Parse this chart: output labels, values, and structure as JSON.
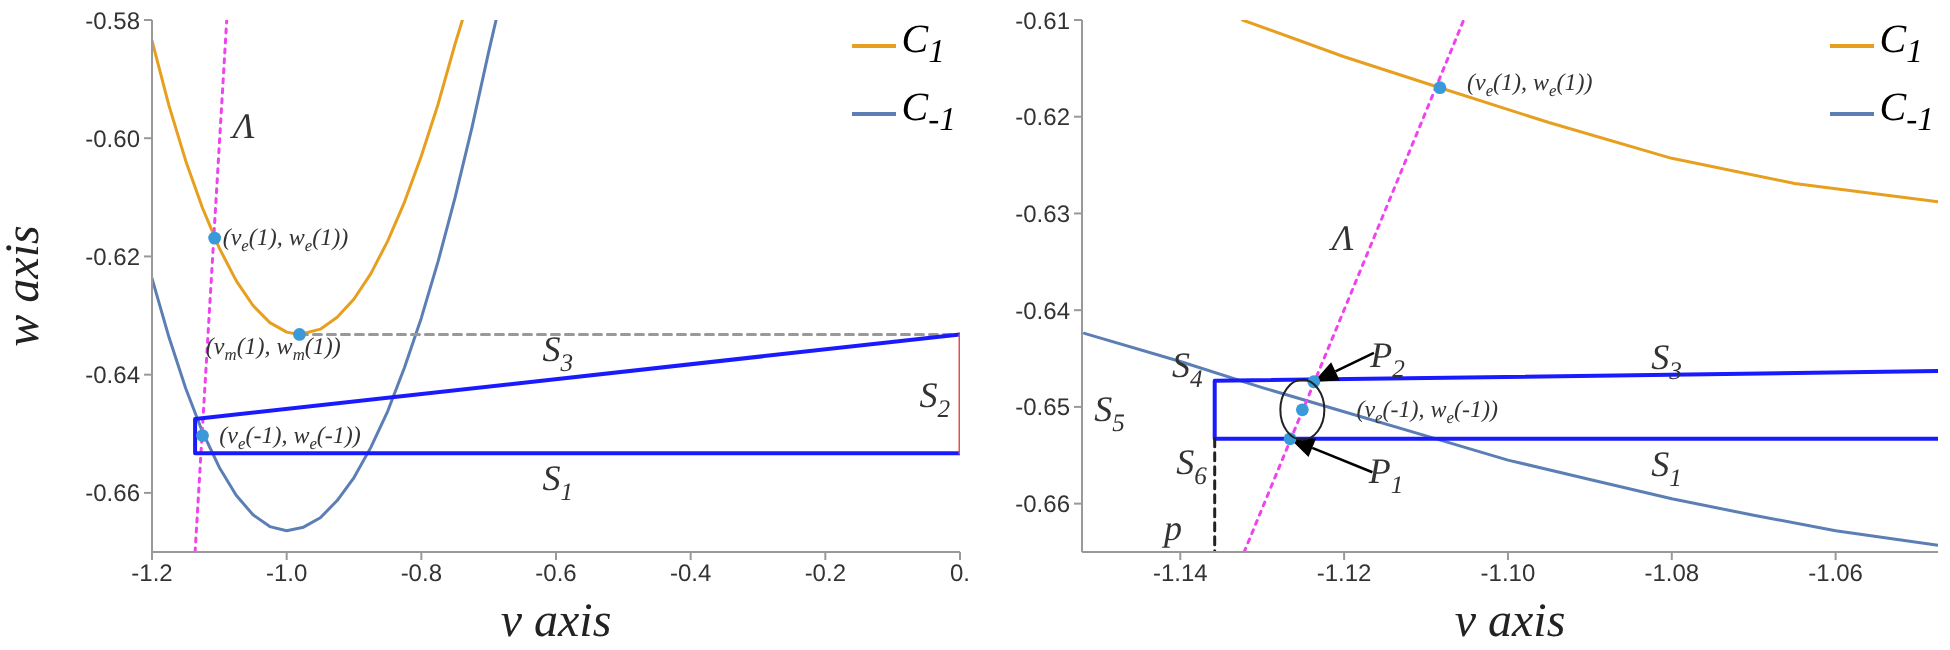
{
  "chart_data": [
    {
      "type": "line",
      "xlabel": "v axis",
      "ylabel": "w axis",
      "xlim": [
        -1.2,
        0
      ],
      "ylim": [
        -0.67,
        -0.58
      ],
      "xticks": [
        -1.2,
        {
          "value": -1,
          "label": "-1.0"
        },
        -0.8,
        -0.6,
        -0.4,
        -0.2,
        {
          "value": 0,
          "label": "0."
        }
      ],
      "yticks": [
        -0.58,
        {
          "value": -0.6,
          "label": "-0.60"
        },
        -0.62,
        -0.64,
        -0.66
      ],
      "grid": false,
      "legend": "top right",
      "marker": "none",
      "series": [
        {
          "name": "C$_{1}$",
          "color": "#e69f1e",
          "x": [
            -1.2,
            -1.175,
            -1.15,
            -1.125,
            -1.1,
            -1.075,
            -1.05,
            -1.025,
            -1.0,
            -0.981,
            -0.95,
            -0.925,
            -0.9,
            -0.875,
            -0.85,
            -0.825,
            -0.8,
            -0.775,
            -0.75,
            -0.739
          ],
          "values": [
            -0.5835,
            -0.5944,
            -0.6038,
            -0.6118,
            -0.6186,
            -0.6241,
            -0.6283,
            -0.6312,
            -0.6328,
            -0.6332,
            -0.6323,
            -0.6303,
            -0.6272,
            -0.6229,
            -0.6174,
            -0.6108,
            -0.603,
            -0.5942,
            -0.5841,
            -0.58
          ]
        },
        {
          "name": "C$_{-1}$",
          "color": "#5b7fb5",
          "x": [
            -1.2,
            -1.175,
            -1.15,
            -1.125,
            -1.1,
            -1.075,
            -1.05,
            -1.025,
            -1.0,
            -0.975,
            -0.95,
            -0.925,
            -0.9,
            -0.875,
            -0.85,
            -0.825,
            -0.8,
            -0.775,
            -0.75,
            -0.725,
            -0.7,
            -0.689
          ],
          "values": [
            -0.6237,
            -0.6336,
            -0.6423,
            -0.6497,
            -0.6557,
            -0.6604,
            -0.6637,
            -0.6657,
            -0.6664,
            -0.6658,
            -0.6642,
            -0.6613,
            -0.6574,
            -0.6523,
            -0.6462,
            -0.6388,
            -0.6304,
            -0.6208,
            -0.6101,
            -0.5983,
            -0.5854,
            -0.58
          ]
        },
        {
          "color": "#ee44ee",
          "line_style": "dotted",
          "x": [
            -1.136,
            -1.089
          ],
          "values": [
            -0.67,
            -0.58
          ]
        },
        {
          "color": "#999999",
          "line_style": "dashed",
          "x": [
            -0.981,
            0
          ],
          "values": [
            -0.6332,
            -0.6332
          ]
        },
        {
          "color": "#1a1aff",
          "x": [
            0,
            -1.136,
            -1.136,
            0
          ],
          "values": [
            -0.6533,
            -0.6533,
            -0.6475,
            -0.6332
          ]
        },
        {
          "color": "#e05050",
          "x": [
            0,
            0
          ],
          "values": [
            -0.6332,
            -0.6533
          ]
        },
        {
          "type": "scatter",
          "marker": "circle",
          "color": "#3a9ad9",
          "x": [
            -1.107,
            -0.981,
            -1.125
          ],
          "values": [
            -0.6169,
            -0.6332,
            -0.6503
          ]
        }
      ],
      "annotations": [
        "Λ",
        "(v$_{e}$(1), w$_{e}$(1))",
        "(v$_{m}$(1), w$_{m}$(1))",
        "(v$_{e}$(-1), w$_{e}$(-1))",
        "S$_{3}$",
        "S$_{2}$",
        "S$_{1}$"
      ]
    },
    {
      "type": "line",
      "xlabel": "v axis",
      "xlim": [
        -1.152,
        -1.0475
      ],
      "ylim": [
        -0.665,
        -0.61
      ],
      "xticks": [
        -1.14,
        -1.12,
        {
          "value": -1.1,
          "label": "-1.10"
        },
        -1.08,
        -1.06
      ],
      "yticks": [
        -0.61,
        -0.62,
        -0.63,
        -0.64,
        -0.65,
        -0.66
      ],
      "grid": false,
      "legend": "top right",
      "marker": "none",
      "series": [
        {
          "name": "C$_{1}$",
          "color": "#e69f1e",
          "x": [
            -1.1324,
            -1.12,
            -1.1083,
            -1.095,
            -1.08,
            -1.065,
            -1.0475
          ],
          "values": [
            -0.61,
            -0.6138,
            -0.617,
            -0.6206,
            -0.6243,
            -0.6269,
            -0.6288
          ]
        },
        {
          "name": "C$_{-1}$",
          "color": "#5b7fb5",
          "x": [
            -1.1517,
            -1.14,
            -1.13,
            -1.12,
            -1.11,
            -1.1,
            -1.09,
            -1.08,
            -1.07,
            -1.06,
            -1.0475
          ],
          "values": [
            -0.6424,
            -0.6453,
            -0.648,
            -0.6505,
            -0.653,
            -0.6555,
            -0.6575,
            -0.6595,
            -0.6612,
            -0.6628,
            -0.6643
          ]
        },
        {
          "color": "#ee44ee",
          "line_style": "dotted",
          "x": [
            -1.1322,
            -1.1054
          ],
          "values": [
            -0.665,
            -0.61
          ]
        },
        {
          "color": "#1a1aff",
          "x": [
            -1.0475,
            -1.1358,
            -1.1358,
            -1.0475
          ],
          "values": [
            -0.6463,
            -0.6473,
            -0.6533,
            -0.6533
          ]
        },
        {
          "color": "#222222",
          "line_style": "dashed",
          "x": [
            -1.1358,
            -1.1358
          ],
          "values": [
            -0.6533,
            -0.665
          ]
        },
        {
          "type": "scatter",
          "marker": "circle",
          "color": "#3a9ad9",
          "x": [
            -1.1083,
            -1.1237,
            -1.1251,
            -1.1266
          ],
          "values": [
            -0.617,
            -0.6474,
            -0.6503,
            -0.6533
          ]
        }
      ],
      "annotations": [
        "(v$_{e}$(1), w$_{e}$(1))",
        "Λ",
        "S$_{4}$",
        "S$_{5}$",
        "S$_{6}$",
        "S$_{3}$",
        "S$_{1}$",
        "(v$_{e}$(-1), w$_{e}$(-1))",
        "P$_{2}$",
        "P$_{1}$",
        "p"
      ]
    }
  ]
}
